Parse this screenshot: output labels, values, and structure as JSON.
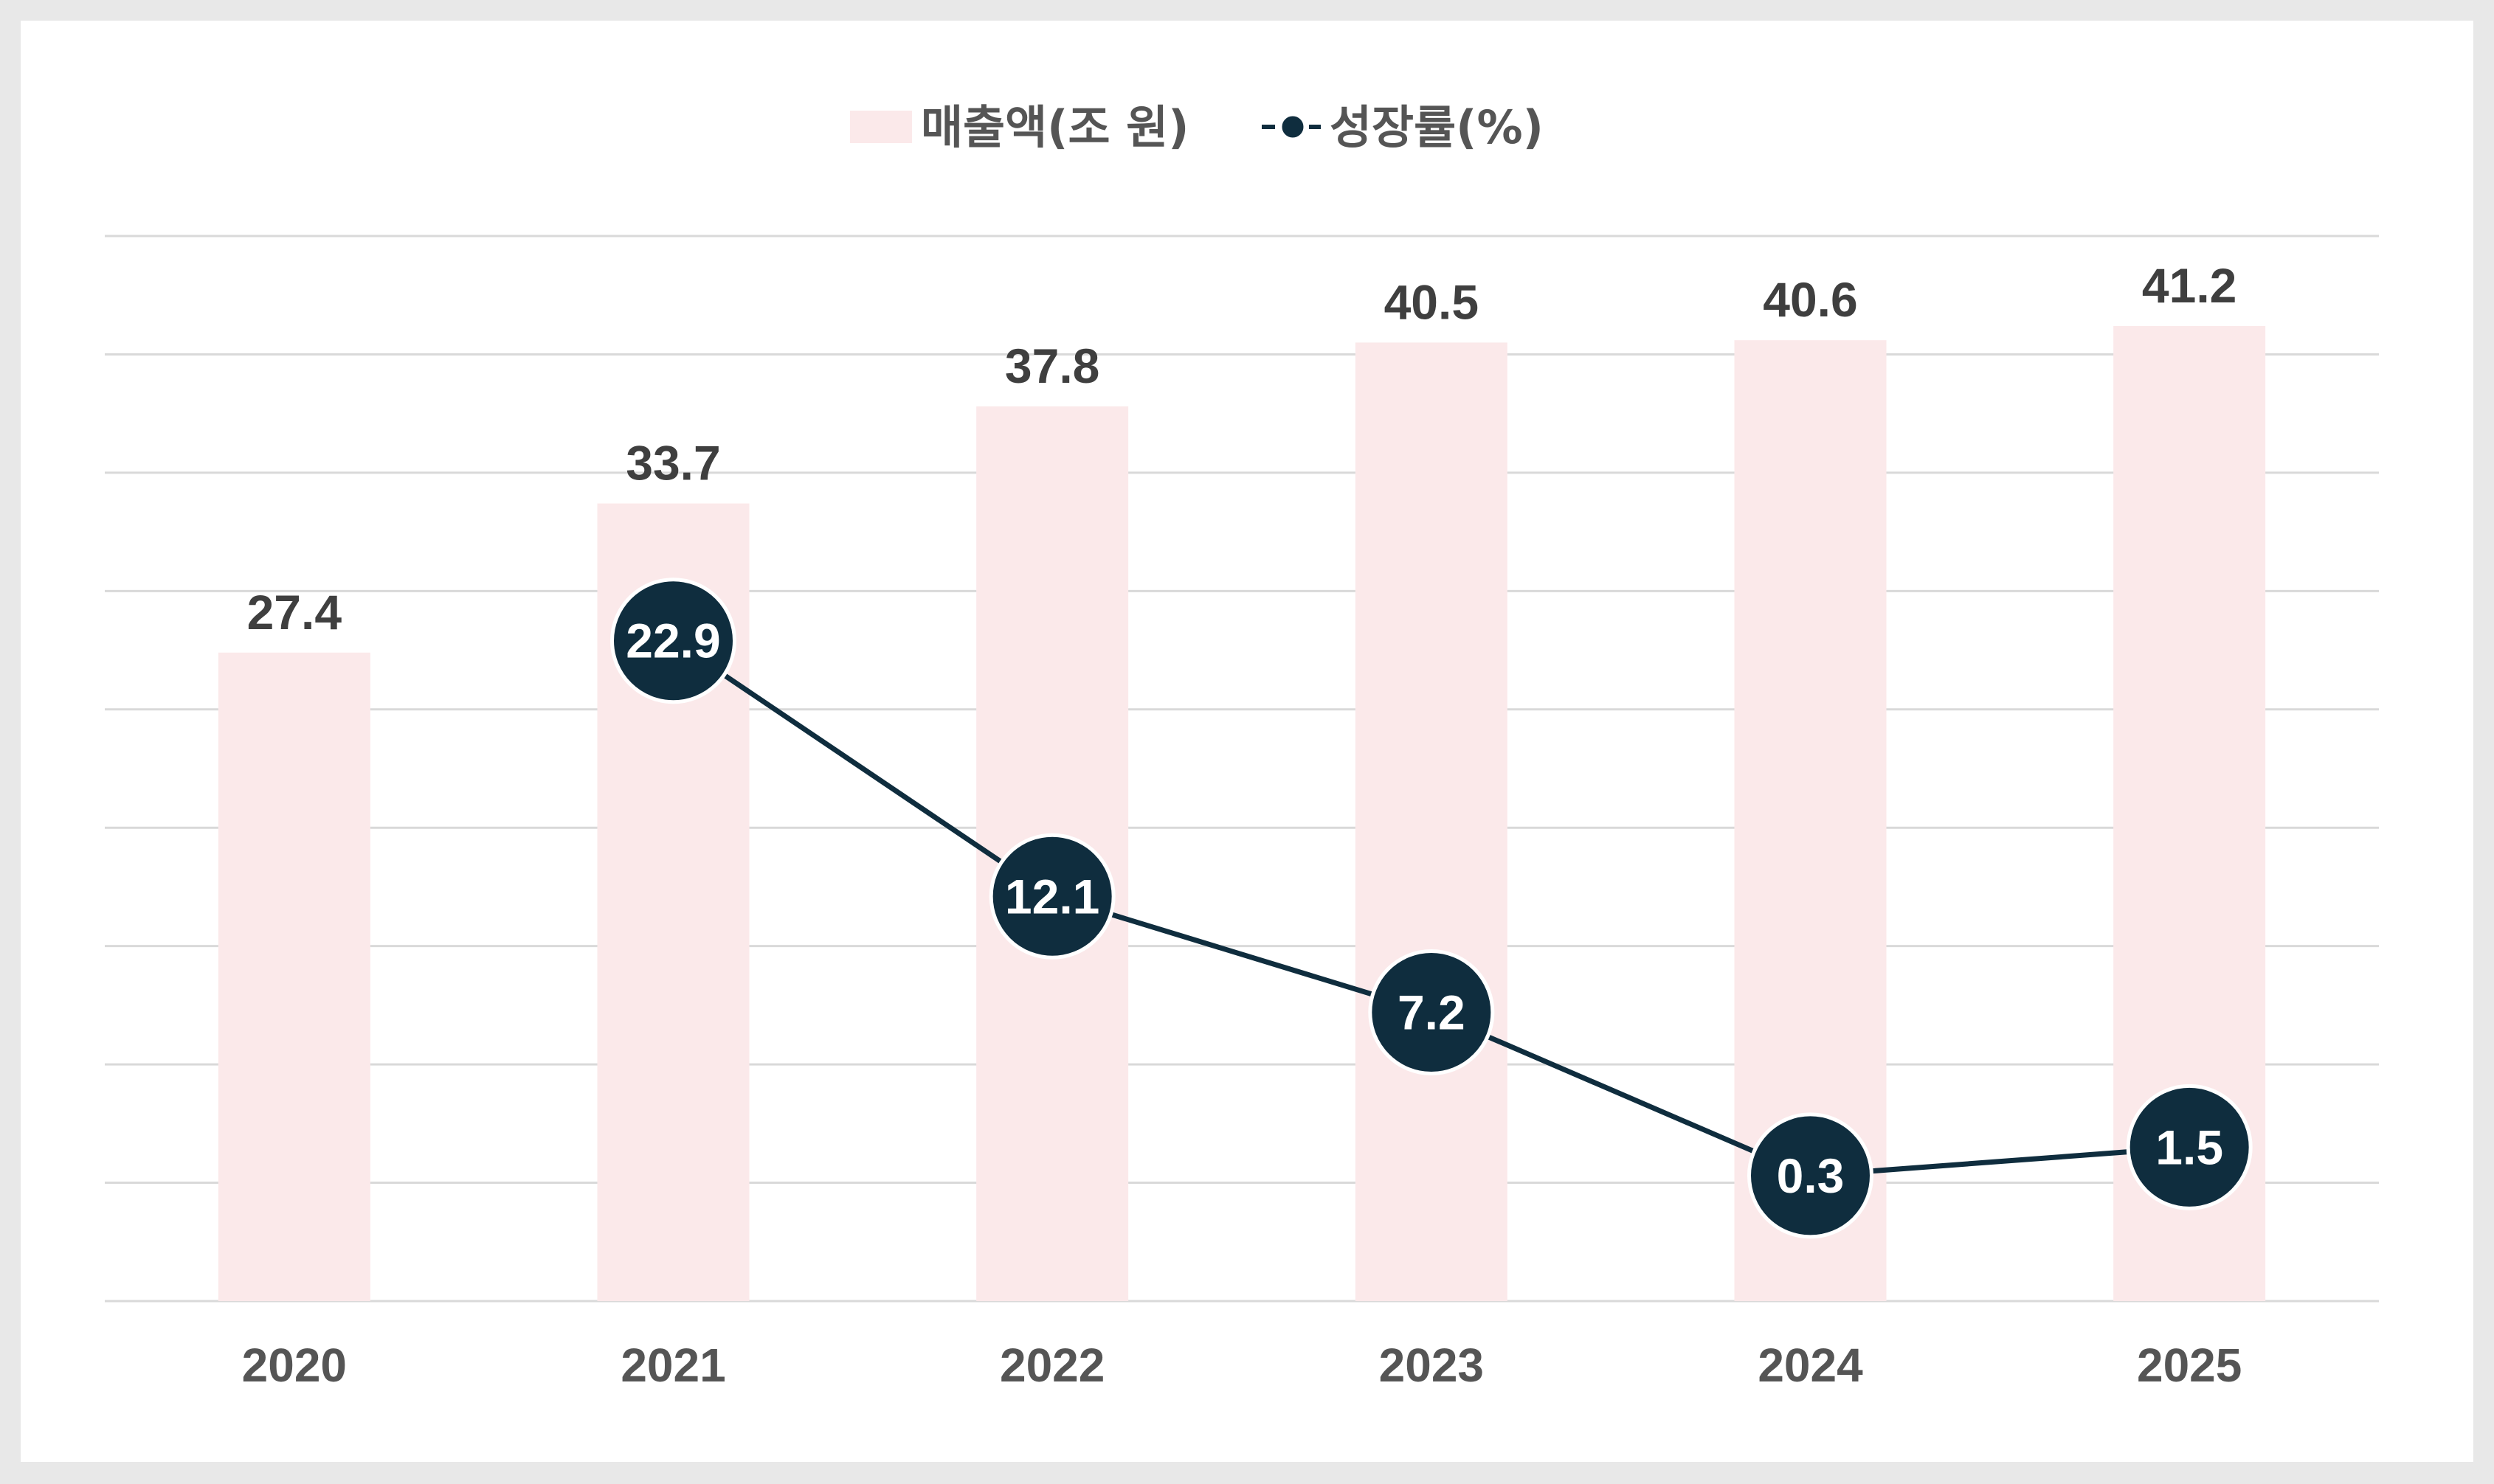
{
  "chart_data": {
    "type": "bar",
    "categories": [
      "2020",
      "2021",
      "2022",
      "2023",
      "2024",
      "2025"
    ],
    "series": [
      {
        "name": "매출액(조 원)",
        "type": "bar",
        "values": [
          27.4,
          33.7,
          37.8,
          40.5,
          40.6,
          41.2
        ],
        "color": "#fbe9ea"
      },
      {
        "name": "성장률(%)",
        "type": "line",
        "values": [
          null,
          22.9,
          12.1,
          7.2,
          0.3,
          1.5
        ],
        "color": "#0f2d3e"
      }
    ],
    "title": "",
    "xlabel": "",
    "ylabel": "",
    "ylim": [
      0,
      45
    ],
    "y2lim": [
      -5,
      40
    ],
    "grid": true,
    "legend": "top-center",
    "colors": {
      "grid": "#d9d9d9",
      "bar_label": "#3f3f3f",
      "axis_label": "#555555",
      "marker_text": "#ffffff",
      "marker_stroke": "#ffffff"
    }
  }
}
